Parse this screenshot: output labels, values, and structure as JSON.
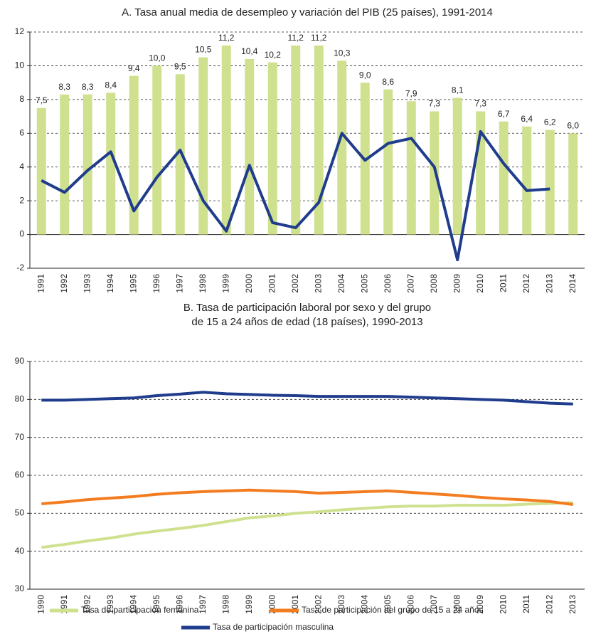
{
  "chart_data": [
    {
      "type": "bar",
      "title": "A. Tasa anual media de desempleo y variación del PIB (25 países), 1991-2014",
      "categories": [
        "1991",
        "1992",
        "1993",
        "1994",
        "1995",
        "1996",
        "1997",
        "1998",
        "1999",
        "2000",
        "2001",
        "2002",
        "2003",
        "2004",
        "2005",
        "2006",
        "2007",
        "2008",
        "2009",
        "2010",
        "2011",
        "2012",
        "2013",
        "2014"
      ],
      "series": [
        {
          "type": "bar",
          "color": "#cfe18f",
          "values": [
            7.5,
            8.3,
            8.3,
            8.4,
            9.4,
            10.0,
            9.5,
            10.5,
            11.2,
            10.4,
            10.2,
            11.2,
            11.2,
            10.3,
            9.0,
            8.6,
            7.9,
            7.3,
            8.1,
            7.3,
            6.7,
            6.4,
            6.2,
            6.0
          ],
          "value_labels": [
            "7,5",
            "8,3",
            "8,3",
            "8,4",
            "9,4",
            "10,0",
            "9,5",
            "10,5",
            "11,2",
            "10,4",
            "10,2",
            "11,2",
            "11,2",
            "10,3",
            "9,0",
            "8,6",
            "7,9",
            "7,3",
            "8,1",
            "7,3",
            "6,7",
            "6,4",
            "6,2",
            "6,0"
          ]
        },
        {
          "type": "line",
          "color": "#203c8c",
          "values": [
            3.2,
            2.5,
            3.8,
            4.9,
            1.4,
            3.4,
            5.0,
            2.0,
            0.2,
            4.1,
            0.7,
            0.4,
            1.9,
            6.0,
            4.4,
            5.4,
            5.7,
            4.0,
            -1.5,
            6.1,
            4.2,
            2.6,
            2.7,
            null
          ]
        }
      ],
      "ylim": [
        -2,
        12
      ],
      "yticks": [
        -2,
        0,
        2,
        4,
        6,
        8,
        10,
        12
      ],
      "grid": true
    },
    {
      "type": "line",
      "title": [
        "B. Tasa de participación laboral por sexo y del grupo",
        "de 15 a 24 años de edad (18 países), 1990-2013"
      ],
      "categories": [
        "1990",
        "1991",
        "1992",
        "1993",
        "1994",
        "1995",
        "1996",
        "1997",
        "1998",
        "1999",
        "2000",
        "2001",
        "2002",
        "2003",
        "2004",
        "2005",
        "2006",
        "2007",
        "2008",
        "2009",
        "2010",
        "2011",
        "2012",
        "2013"
      ],
      "series": [
        {
          "name": "Tasa de participación femenina",
          "color": "#cfe18f",
          "values": [
            41,
            41.8,
            42.7,
            43.5,
            44.5,
            45.3,
            46,
            46.8,
            47.8,
            48.8,
            49.3,
            50,
            50.4,
            50.9,
            51.3,
            51.7,
            51.9,
            51.9,
            52.1,
            52.1,
            52.1,
            52.4,
            52.6,
            52.8
          ]
        },
        {
          "name": "Tasa de participación del grupo de 15 a 24 años",
          "color": "#f47c20",
          "values": [
            52.5,
            53,
            53.6,
            54,
            54.4,
            55,
            55.4,
            55.7,
            55.9,
            56.1,
            55.9,
            55.7,
            55.3,
            55.5,
            55.7,
            55.9,
            55.5,
            55.1,
            54.7,
            54.2,
            53.8,
            53.5,
            53.1,
            52.3
          ]
        },
        {
          "name": "Tasa de participación masculina",
          "color": "#203c8c",
          "values": [
            79.8,
            79.8,
            80,
            80.2,
            80.4,
            81,
            81.4,
            81.9,
            81.5,
            81.3,
            81.1,
            81,
            80.8,
            80.8,
            80.8,
            80.8,
            80.6,
            80.4,
            80.2,
            80,
            79.8,
            79.4,
            79,
            78.8
          ]
        }
      ],
      "ylim": [
        30,
        90
      ],
      "yticks": [
        30,
        40,
        50,
        60,
        70,
        80,
        90
      ],
      "grid": true
    }
  ]
}
